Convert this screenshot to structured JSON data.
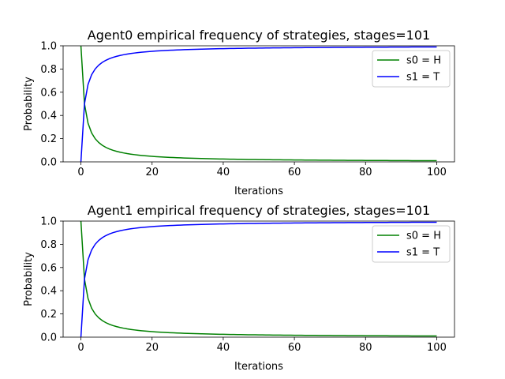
{
  "chart_data": [
    {
      "type": "line",
      "title": "Agent0 empirical frequency of strategies, stages=101",
      "xlabel": "Iterations",
      "ylabel": "Probability",
      "xlim": [
        -5,
        105
      ],
      "ylim": [
        0.0,
        1.0
      ],
      "xticks": [
        "0",
        "20",
        "40",
        "60",
        "80",
        "100"
      ],
      "yticks": [
        "0.0",
        "0.2",
        "0.4",
        "0.6",
        "0.8",
        "1.0"
      ],
      "legend_position": "top-right",
      "grid": false,
      "series": [
        {
          "name": "s0 = H",
          "color": "#008000",
          "formula": "1/(n+1)",
          "n_points": 101
        },
        {
          "name": "s1 = T",
          "color": "#0000ff",
          "formula": "n/(n+1)",
          "n_points": 101
        }
      ]
    },
    {
      "type": "line",
      "title": "Agent1 empirical frequency of strategies, stages=101",
      "xlabel": "Iterations",
      "ylabel": "Probability",
      "xlim": [
        -5,
        105
      ],
      "ylim": [
        0.0,
        1.0
      ],
      "xticks": [
        "0",
        "20",
        "40",
        "60",
        "80",
        "100"
      ],
      "yticks": [
        "0.0",
        "0.2",
        "0.4",
        "0.6",
        "0.8",
        "1.0"
      ],
      "legend_position": "top-right",
      "grid": false,
      "series": [
        {
          "name": "s0 = H",
          "color": "#008000",
          "formula": "1/(n+1)",
          "n_points": 101
        },
        {
          "name": "s1 = T",
          "color": "#0000ff",
          "formula": "n/(n+1)",
          "n_points": 101
        }
      ]
    }
  ]
}
